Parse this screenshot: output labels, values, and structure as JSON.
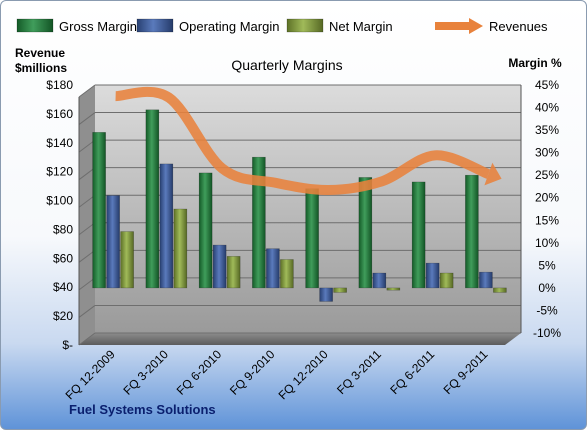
{
  "chart_data": {
    "type": "bar",
    "title": "Quarterly Margins",
    "left_axis_title": [
      "Revenue",
      "$millions"
    ],
    "right_axis_title": "Margin %",
    "categories": [
      "FQ 12-2009",
      "FQ 3-2010",
      "FQ 6-2010",
      "FQ 9-2010",
      "FQ 12-2010",
      "FQ 3-2011",
      "FQ 6-2011",
      "FQ 9-2011"
    ],
    "left_axis": {
      "ylim": [
        0,
        180
      ],
      "ticks": [
        "$-",
        "$20",
        "$40",
        "$60",
        "$80",
        "$100",
        "$120",
        "$140",
        "$160",
        "$180"
      ]
    },
    "right_axis": {
      "ylim": [
        -10,
        45
      ],
      "ticks": [
        "-10%",
        "-5%",
        "0%",
        "5%",
        "10%",
        "15%",
        "20%",
        "25%",
        "30%",
        "35%",
        "40%",
        "45%"
      ]
    },
    "series": [
      {
        "name": "Gross Margin",
        "axis": "right",
        "color": "#1e8c3e",
        "values": [
          34.5,
          39.5,
          25.5,
          29,
          22,
          24.5,
          23.5,
          25
        ]
      },
      {
        "name": "Operating Margin",
        "axis": "right",
        "color": "#3d63b0",
        "values": [
          20.5,
          27.5,
          9.5,
          8.7,
          -3,
          3.3,
          5.5,
          3.5
        ]
      },
      {
        "name": "Net Margin",
        "axis": "right",
        "color": "#8fae3c",
        "values": [
          12.5,
          17.5,
          7,
          6.3,
          -1,
          -0.5,
          3.3,
          -1
        ]
      },
      {
        "name": "Revenues",
        "axis": "left",
        "color": "#e8823c",
        "values": [
          164,
          163,
          114,
          104,
          99,
          105,
          123,
          110
        ]
      }
    ],
    "grid": true,
    "legend": "top"
  },
  "footer": "Fuel Systems Solutions"
}
